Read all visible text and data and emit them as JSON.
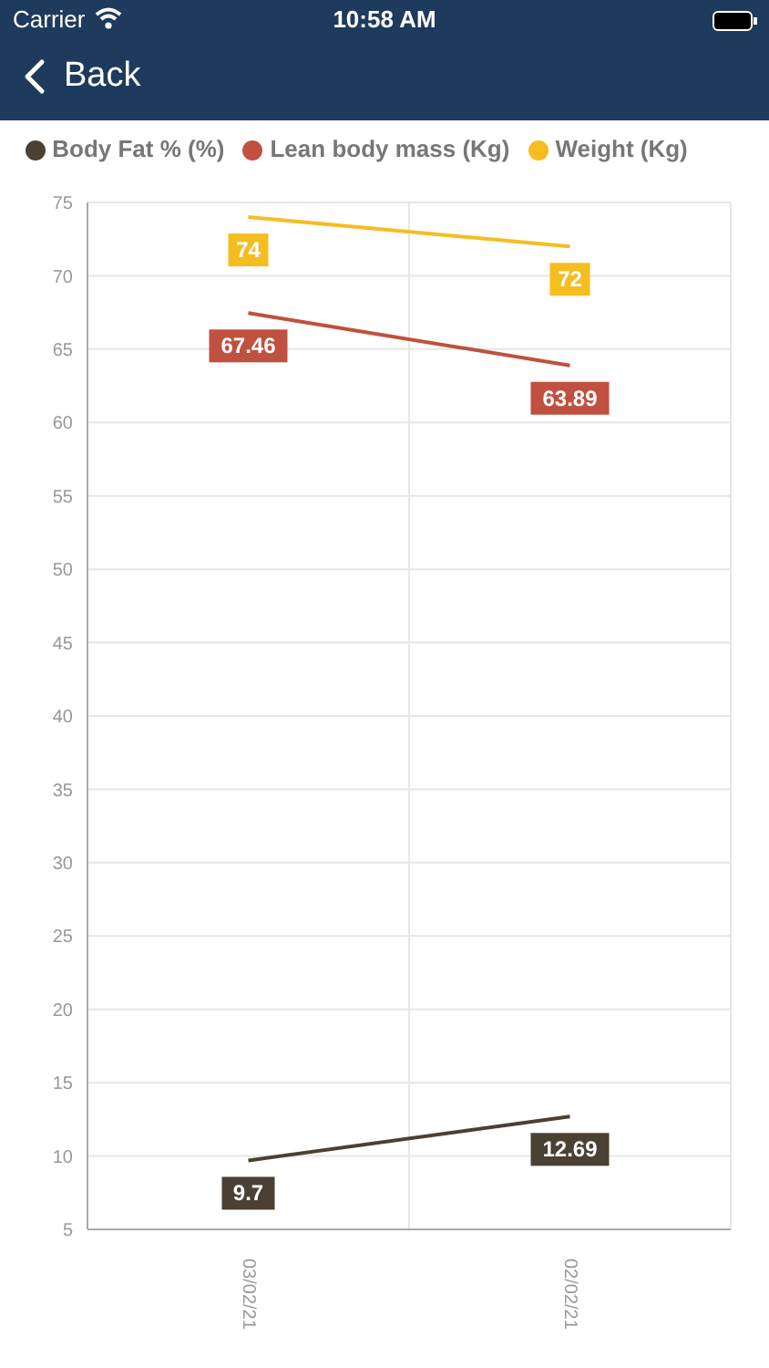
{
  "chart_data": {
    "type": "line",
    "categories": [
      "03/02/21",
      "02/02/21"
    ],
    "series": [
      {
        "name": "Weight (Kg)",
        "color": "#f5bd1f",
        "values": [
          74,
          72
        ]
      },
      {
        "name": "Body Fat % (%)",
        "color": "#4a4033",
        "values": [
          9.7,
          12.69
        ]
      },
      {
        "name": "Lean body mass (Kg)",
        "color": "#c0503f",
        "values": [
          67.46,
          63.89
        ]
      }
    ],
    "ylim": [
      5,
      75
    ],
    "yticks": [
      5,
      10,
      15,
      20,
      25,
      30,
      35,
      40,
      45,
      50,
      55,
      60,
      65,
      70,
      75
    ],
    "grid": true,
    "legend": "top",
    "marker": "none",
    "line_style": "solid",
    "data_labels": true,
    "annotations": [
      "Carrier",
      "10:58 AM",
      "Back"
    ]
  }
}
